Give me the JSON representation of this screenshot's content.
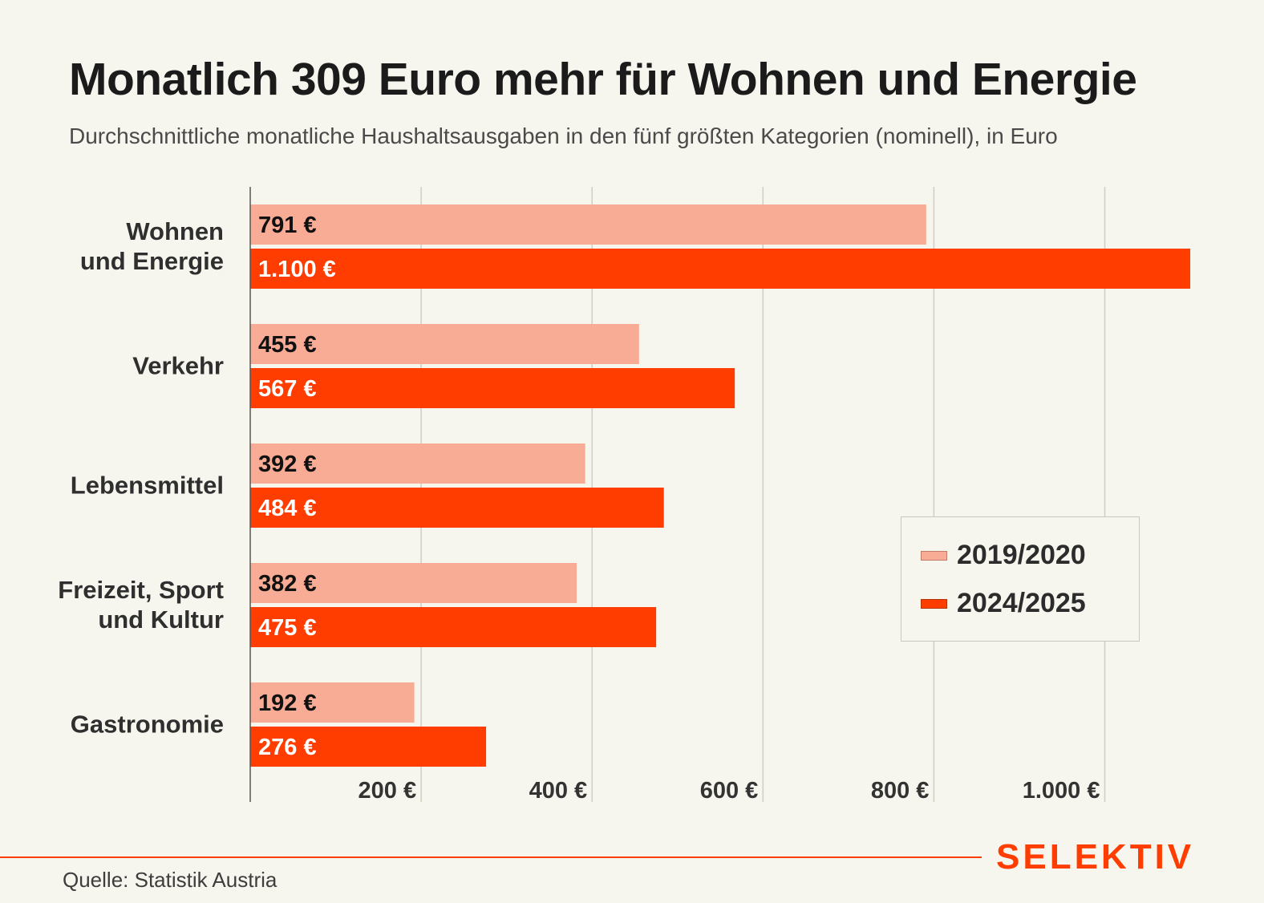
{
  "header": {
    "title": "Monatlich 309 Euro mehr für Wohnen und Energie",
    "subtitle": "Durchschnittliche monatliche Haushaltsausgaben in den fünf größten Kategorien (nominell), in Euro"
  },
  "chart_data": {
    "type": "bar",
    "orientation": "horizontal",
    "title": "Monatlich 309 Euro mehr für Wohnen und Energie",
    "subtitle": "Durchschnittliche monatliche Haushaltsausgaben in den fünf größten Kategorien (nominell), in Euro",
    "categories": [
      [
        "Wohnen",
        "und Energie"
      ],
      [
        "Verkehr"
      ],
      [
        "Lebensmittel"
      ],
      [
        "Freizeit, Sport",
        "und Kultur"
      ],
      [
        "Gastronomie"
      ]
    ],
    "series": [
      {
        "name": "2019/2020",
        "color": "#f9ac95",
        "label_color": "#111111",
        "values": [
          791,
          455,
          392,
          382,
          192
        ],
        "labels": [
          "791 €",
          "455 €",
          "392 €",
          "382 €",
          "192 €"
        ]
      },
      {
        "name": "2024/2025",
        "color": "#ff3d00",
        "label_color": "#ffffff",
        "values": [
          1100,
          567,
          484,
          475,
          276
        ],
        "labels": [
          "1.100 €",
          "567 €",
          "484 €",
          "475 €",
          "276 €"
        ]
      }
    ],
    "xlabel": "",
    "ylabel": "",
    "xlim": [
      0,
      1100
    ],
    "xticks": [
      200,
      400,
      600,
      800,
      1000
    ],
    "xtick_labels": [
      "200 €",
      "400 €",
      "600 €",
      "800 €",
      "1.000 €"
    ],
    "grid": true,
    "legend": "right"
  },
  "legend": {
    "items": [
      {
        "label": "2019/2020",
        "color": "#f9ac95"
      },
      {
        "label": "2024/2025",
        "color": "#ff3d00"
      }
    ]
  },
  "footer": {
    "source": "Quelle: Statistik Austria",
    "brand": "SELEKTIV",
    "accent_color": "#ff3d00"
  }
}
